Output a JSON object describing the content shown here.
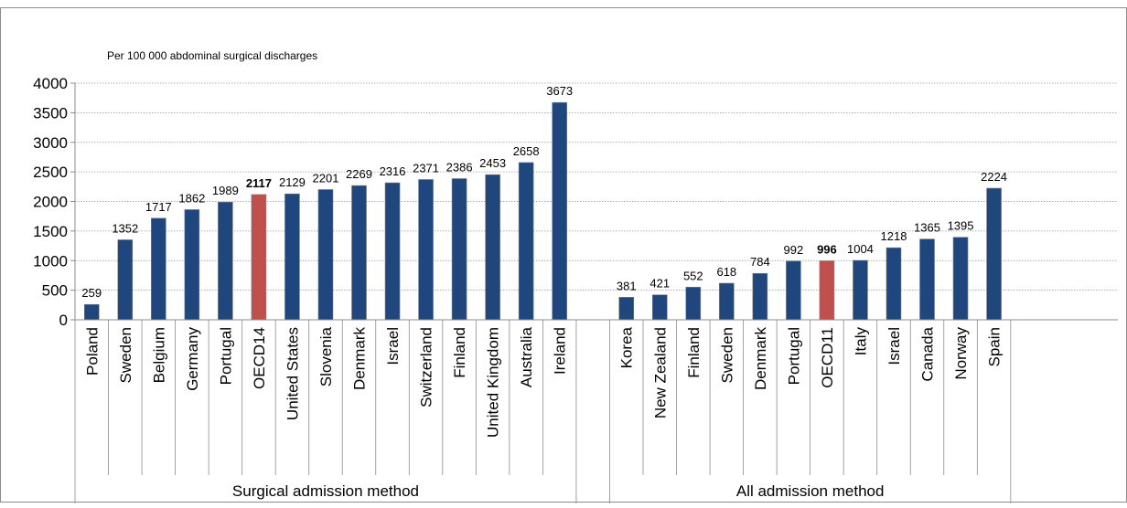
{
  "chart_data": {
    "type": "bar",
    "subtitle": "Per 100 000 abdominal surgical discharges",
    "ylim": [
      0,
      4000
    ],
    "yticks": [
      0,
      500,
      1000,
      1500,
      2000,
      2500,
      3000,
      3500,
      4000
    ],
    "grid": "horizontal dotted",
    "colors": {
      "bar": "#1F477D",
      "highlight": "#C0504D",
      "grid": "#999999",
      "axis": "#8C8C8C"
    },
    "groups": [
      {
        "label": "Surgical admission method",
        "categories": [
          "Poland",
          "Sweden",
          "Belgium",
          "Germany",
          "Portugal",
          "OECD14",
          "United States",
          "Slovenia",
          "Denmark",
          "Israel",
          "Switzerland",
          "Finland",
          "United Kingdom",
          "Australia",
          "Ireland"
        ],
        "values": [
          259,
          1352,
          1717,
          1862,
          1989,
          2117,
          2129,
          2201,
          2269,
          2316,
          2371,
          2386,
          2453,
          2658,
          3673
        ],
        "highlight": "OECD14"
      },
      {
        "label": "All admission method",
        "categories": [
          "Korea",
          "New Zealand",
          "Finland",
          "Sweden",
          "Denmark",
          "Portugal",
          "OECD11",
          "Italy",
          "Israel",
          "Canada",
          "Norway",
          "Spain"
        ],
        "values": [
          381,
          421,
          552,
          618,
          784,
          992,
          996,
          1004,
          1218,
          1365,
          1395,
          2224
        ],
        "highlight": "OECD11"
      }
    ]
  }
}
